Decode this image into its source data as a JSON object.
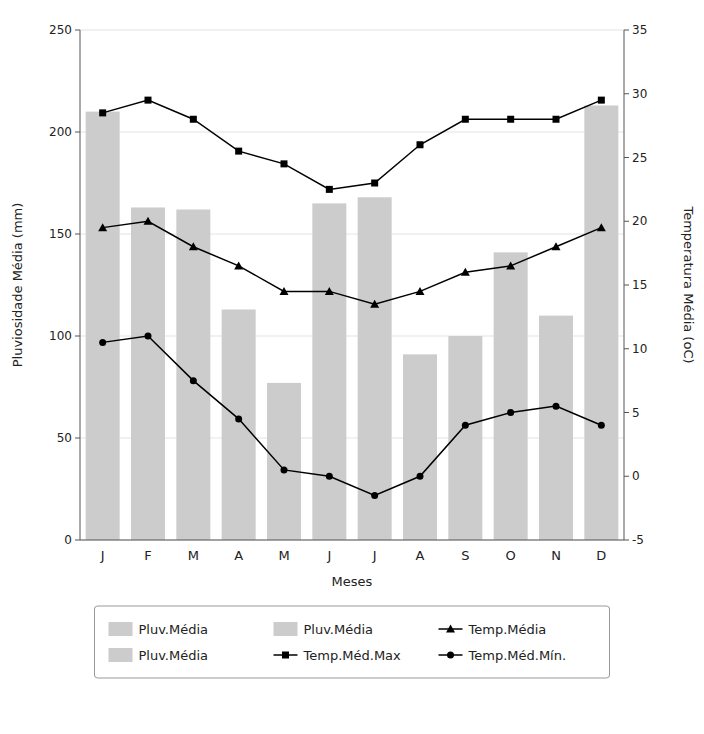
{
  "chart_data": {
    "type": "bar",
    "x_label": "Meses",
    "y_label": "Pluviosidade Média (mm)",
    "y2_label": "Temperatura Média (oC)",
    "categories": [
      "J",
      "F",
      "M",
      "A",
      "M",
      "J",
      "J",
      "A",
      "S",
      "O",
      "N",
      "D"
    ],
    "series": [
      {
        "name": "Pluv.Média",
        "type": "bar",
        "color": "#cccccc",
        "values": [
          210,
          163,
          162,
          113,
          77,
          165,
          168,
          91,
          100,
          141,
          110,
          213
        ]
      },
      {
        "name": "Temp.Méd.Max",
        "type": "line",
        "axis": "y2",
        "color": "#000000",
        "marker": "square",
        "values": [
          28.5,
          29.5,
          28.0,
          25.5,
          24.5,
          22.5,
          23.0,
          26.0,
          28.0,
          28.0,
          28.0,
          29.5
        ]
      },
      {
        "name": "Temp.Média",
        "type": "line",
        "axis": "y2",
        "color": "#000000",
        "marker": "triangle",
        "values": [
          19.5,
          20.0,
          18.0,
          16.5,
          14.5,
          14.5,
          13.5,
          14.5,
          16.0,
          16.5,
          18.0,
          19.5
        ]
      },
      {
        "name": "Temp.Méd.Mín.",
        "type": "line",
        "axis": "y2",
        "color": "#000000",
        "marker": "circle",
        "values": [
          10.5,
          11.0,
          7.5,
          4.5,
          0.5,
          0.0,
          -1.5,
          0.0,
          4.0,
          5.0,
          5.5,
          4.0
        ]
      }
    ],
    "ylim": [
      0,
      250
    ],
    "yticks": [
      0,
      50,
      100,
      150,
      200,
      250
    ],
    "y2lim": [
      -5,
      35
    ],
    "y2ticks": [
      -5,
      0,
      5,
      10,
      15,
      20,
      25,
      30,
      35
    ],
    "grid": true,
    "legend": "bottom"
  }
}
